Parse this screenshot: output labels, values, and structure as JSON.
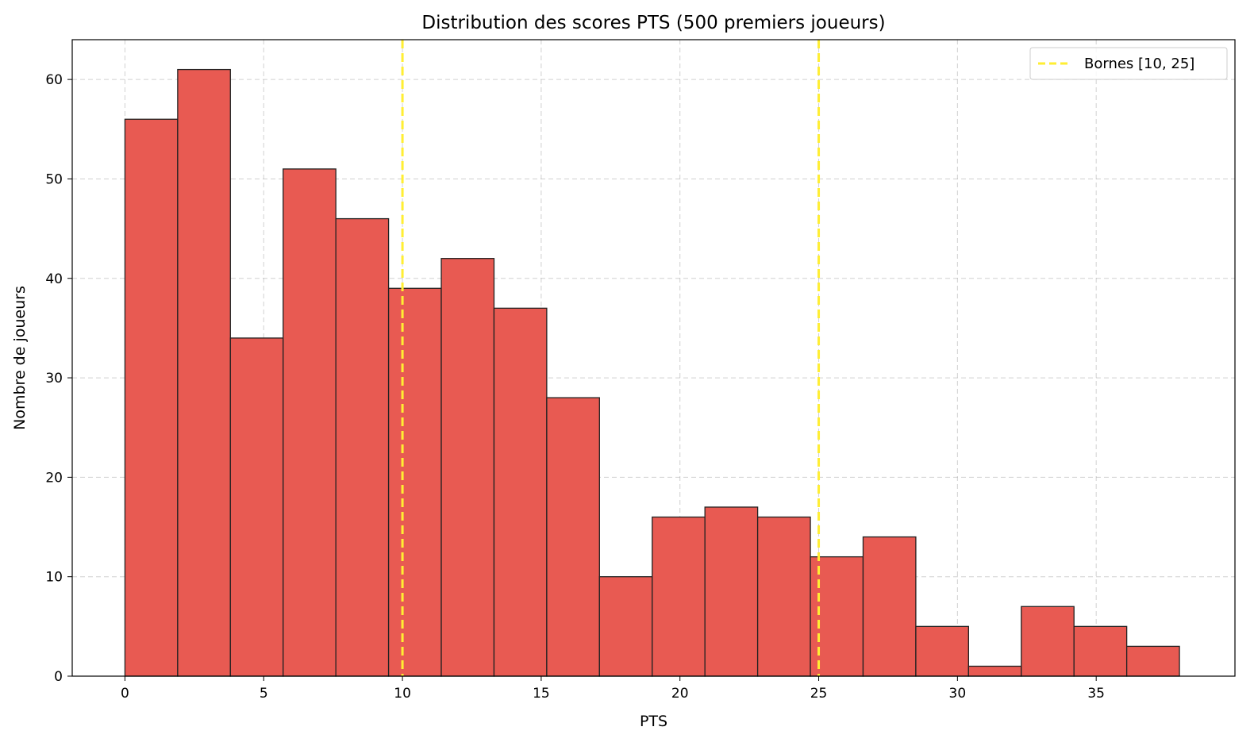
{
  "chart_data": {
    "type": "bar",
    "title": "Distribution des scores PTS (500 premiers joueurs)",
    "xlabel": "PTS",
    "ylabel": "Nombre de joueurs",
    "xlim": [
      -1.9,
      40
    ],
    "ylim": [
      0,
      64
    ],
    "grid": true,
    "legend_position": "top-right",
    "x_ticks": [
      {
        "value": 0,
        "label": "0"
      },
      {
        "value": 5,
        "label": "5"
      },
      {
        "value": 10,
        "label": "10"
      },
      {
        "value": 15,
        "label": "15"
      },
      {
        "value": 20,
        "label": "20"
      },
      {
        "value": 25,
        "label": "25"
      },
      {
        "value": 30,
        "label": "30"
      },
      {
        "value": 35,
        "label": "35"
      }
    ],
    "y_ticks": [
      {
        "value": 0,
        "label": "0"
      },
      {
        "value": 10,
        "label": "10"
      },
      {
        "value": 20,
        "label": "20"
      },
      {
        "value": 30,
        "label": "30"
      },
      {
        "value": 40,
        "label": "40"
      },
      {
        "value": 50,
        "label": "50"
      },
      {
        "value": 60,
        "label": "60"
      }
    ],
    "bins": {
      "start": 0,
      "end": 38,
      "count": 20
    },
    "values": [
      56,
      61,
      34,
      51,
      46,
      39,
      42,
      37,
      28,
      10,
      16,
      17,
      16,
      12,
      14,
      5,
      1,
      7,
      5,
      3
    ],
    "bar_color": "#e85a52",
    "bar_edge_color": "#222222",
    "bounds": {
      "values": [
        10,
        25
      ],
      "color": "#ffee33",
      "legend_label": "Bornes [10, 25]"
    }
  }
}
